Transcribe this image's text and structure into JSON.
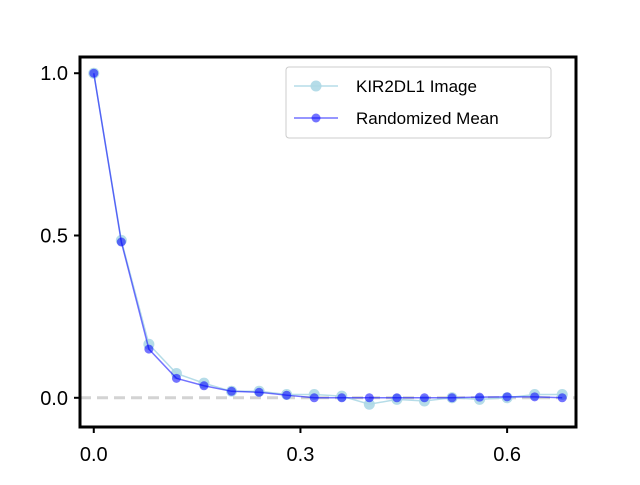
{
  "chart_data": {
    "type": "line",
    "title": "",
    "xlabel": "",
    "ylabel": "",
    "xlim": [
      -0.02,
      0.7
    ],
    "ylim": [
      -0.09,
      1.05
    ],
    "xticks": [
      0.0,
      0.3,
      0.6
    ],
    "xtick_labels": [
      "0.0",
      "0.3",
      "0.6"
    ],
    "yticks": [
      0.0,
      0.5,
      1.0
    ],
    "ytick_labels": [
      "0.0",
      "0.5",
      "1.0"
    ],
    "grid": false,
    "legend_position": "top-right",
    "reference_line": {
      "y": 0,
      "style": "dashed",
      "color": "#d3d3d3"
    },
    "series": [
      {
        "name": "KIR2DL1 Image",
        "color": "#add8e6",
        "marker": "circle",
        "x": [
          0.0,
          0.04,
          0.08,
          0.12,
          0.16,
          0.2,
          0.24,
          0.28,
          0.32,
          0.36,
          0.4,
          0.44,
          0.48,
          0.52,
          0.56,
          0.6,
          0.64,
          0.68
        ],
        "y": [
          1.0,
          0.485,
          0.165,
          0.075,
          0.045,
          0.02,
          0.02,
          0.01,
          0.01,
          0.005,
          -0.02,
          -0.005,
          -0.01,
          0.0,
          -0.005,
          0.0,
          0.01,
          0.01
        ]
      },
      {
        "name": "Randomized Mean",
        "color": "#0000ff",
        "marker": "circle",
        "x": [
          0.0,
          0.04,
          0.08,
          0.12,
          0.16,
          0.2,
          0.24,
          0.28,
          0.32,
          0.36,
          0.4,
          0.44,
          0.48,
          0.52,
          0.56,
          0.6,
          0.64,
          0.68
        ],
        "y": [
          1.0,
          0.48,
          0.15,
          0.06,
          0.037,
          0.02,
          0.017,
          0.008,
          0.0,
          0.0,
          0.0,
          0.0,
          0.0,
          0.0,
          0.002,
          0.003,
          0.003,
          0.0
        ]
      }
    ]
  }
}
